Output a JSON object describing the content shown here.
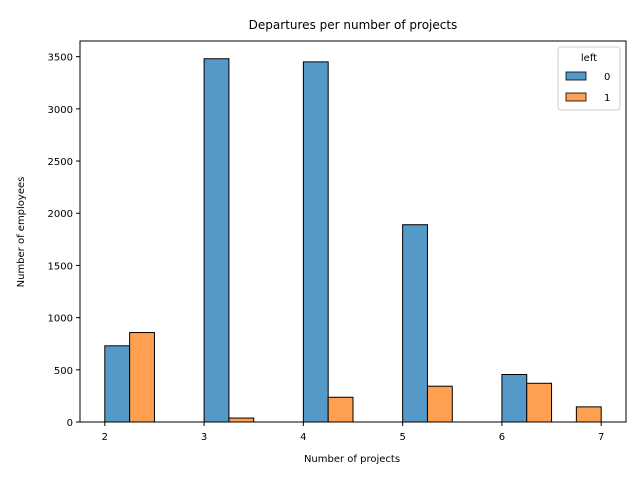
{
  "chart_data": {
    "type": "bar",
    "title": "Departures per number of projects",
    "xlabel": "Number of projects",
    "ylabel": "Number of employees",
    "xlim": [
      1.75,
      7.25
    ],
    "ylim": [
      0,
      3650
    ],
    "x_ticks": [
      2,
      3,
      4,
      5,
      6,
      7
    ],
    "y_ticks": [
      0,
      500,
      1000,
      1500,
      2000,
      2500,
      3000,
      3500
    ],
    "grid": false,
    "legend": {
      "title": "left",
      "placement": "top-right",
      "entries": [
        {
          "label": "0",
          "color": "#5599c9"
        },
        {
          "label": "1",
          "color": "#fea04f"
        }
      ]
    },
    "bin_width": 0.25,
    "series": [
      {
        "name": "0",
        "color": "#5599c9",
        "bins": [
          {
            "start": 2.0,
            "value": 730
          },
          {
            "start": 3.0,
            "value": 3480
          },
          {
            "start": 4.0,
            "value": 3450
          },
          {
            "start": 5.0,
            "value": 1890
          },
          {
            "start": 6.0,
            "value": 455
          }
        ]
      },
      {
        "name": "1",
        "color": "#fea04f",
        "bins": [
          {
            "start": 2.25,
            "value": 857
          },
          {
            "start": 3.25,
            "value": 38
          },
          {
            "start": 4.25,
            "value": 237
          },
          {
            "start": 5.25,
            "value": 343
          },
          {
            "start": 6.25,
            "value": 371
          },
          {
            "start": 6.75,
            "value": 145
          }
        ]
      }
    ]
  }
}
